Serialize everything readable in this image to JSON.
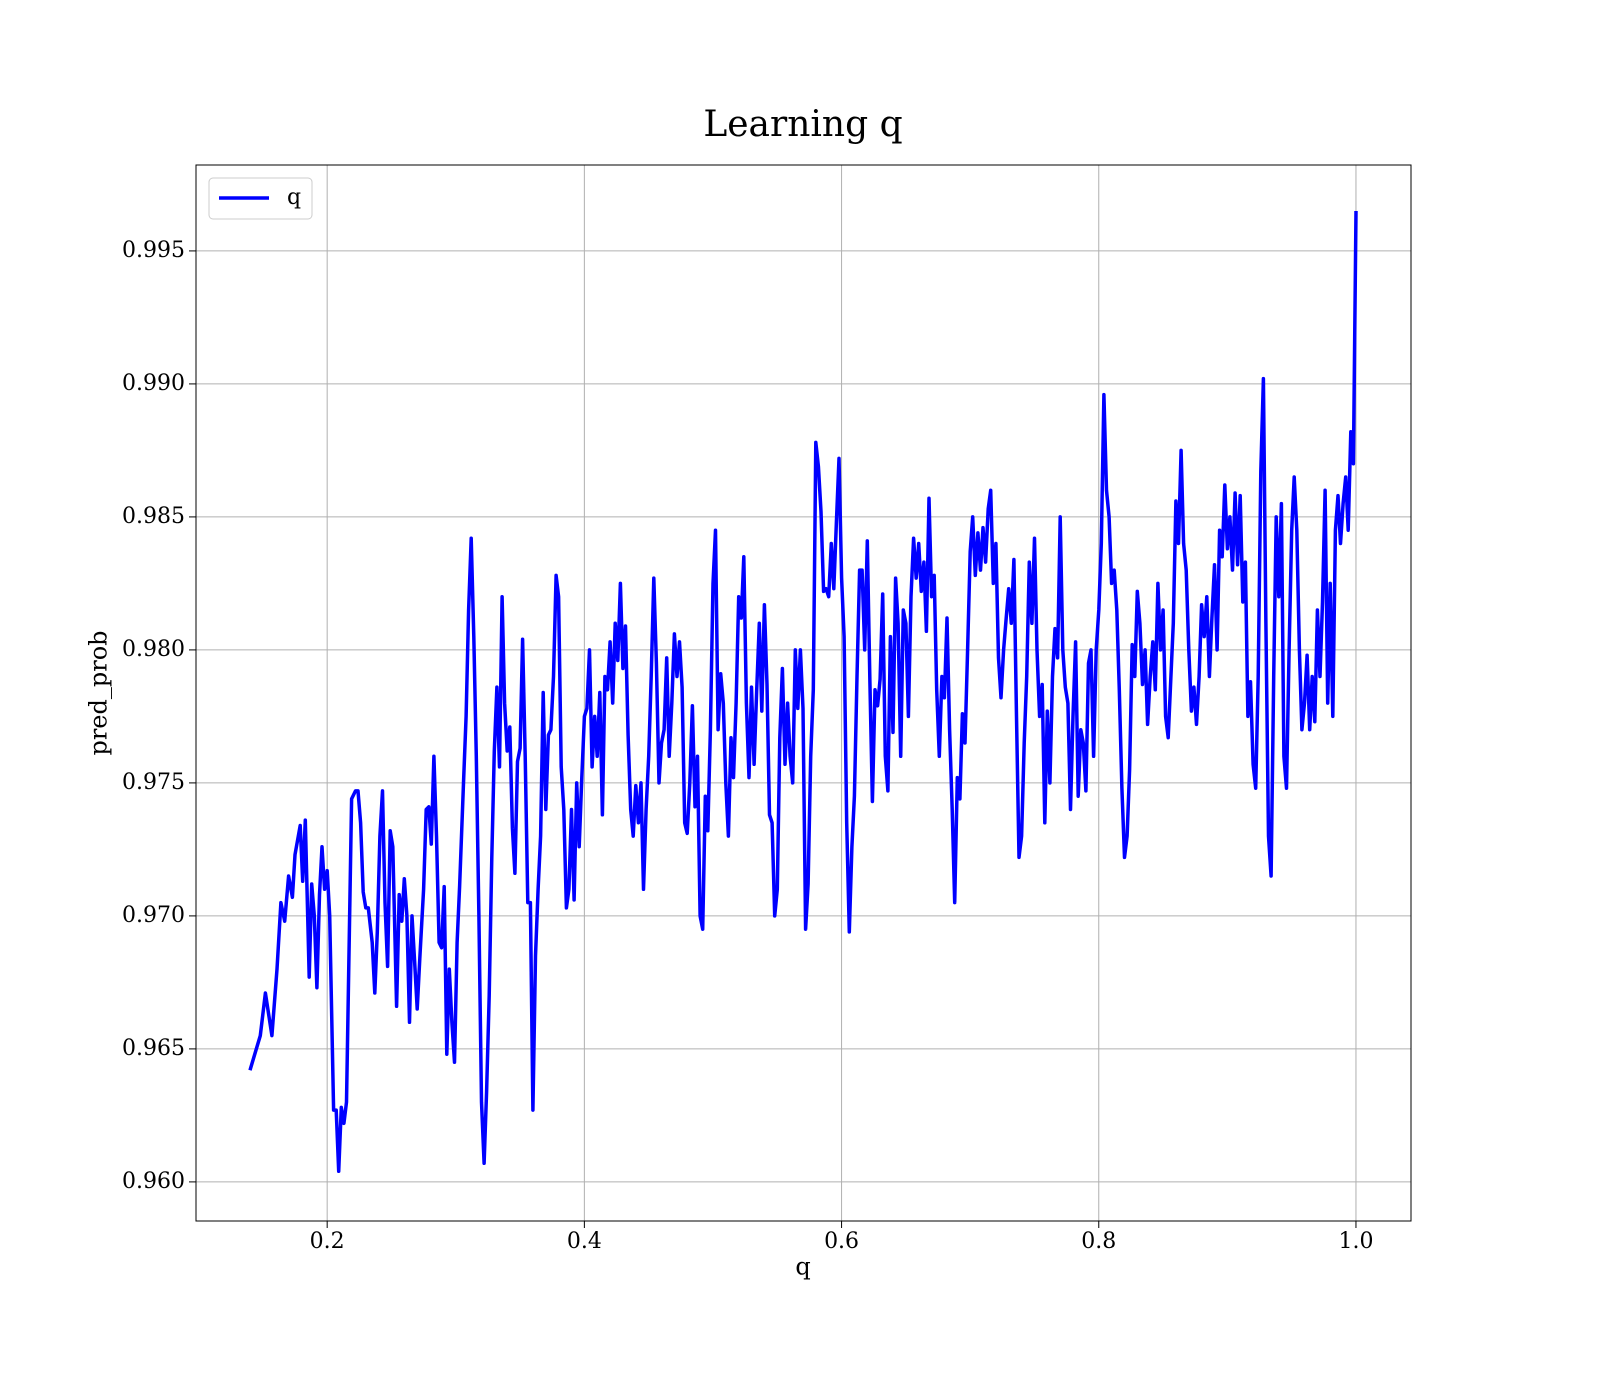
{
  "chart_data": {
    "type": "line",
    "title": "Learning q",
    "xlabel": "q",
    "ylabel": "pred_prob",
    "xlim": [
      0.098,
      1.0428
    ],
    "ylim": [
      0.95853,
      0.99823
    ],
    "xticks": [
      0.2,
      0.4,
      0.6,
      0.8,
      {
        "value": 1.0,
        "label": "1.0"
      }
    ],
    "yticks": [
      {
        "value": 0.96,
        "label": "0.960"
      },
      0.965,
      {
        "value": 0.97,
        "label": "0.970"
      },
      0.975,
      {
        "value": 0.98,
        "label": "0.980"
      },
      0.985,
      {
        "value": 0.99,
        "label": "0.990"
      },
      0.995
    ],
    "grid": true,
    "legend": "upper left",
    "x": [
      0.14,
      0.148,
      0.152,
      0.157,
      0.161,
      0.164,
      0.167,
      0.17,
      0.173,
      0.175,
      0.179,
      0.181,
      0.183,
      0.186,
      0.188,
      0.19,
      0.192,
      0.194,
      0.196,
      0.198,
      0.2,
      0.202,
      0.205,
      0.207,
      0.209,
      0.211,
      0.213,
      0.215,
      0.219,
      0.222,
      0.224,
      0.226,
      0.228,
      0.23,
      0.232,
      0.235,
      0.237,
      0.239,
      0.241,
      0.243,
      0.245,
      0.247,
      0.249,
      0.251,
      0.254,
      0.256,
      0.258,
      0.26,
      0.262,
      0.264,
      0.266,
      0.268,
      0.27,
      0.272,
      0.275,
      0.277,
      0.279,
      0.281,
      0.283,
      0.285,
      0.287,
      0.289,
      0.291,
      0.293,
      0.295,
      0.297,
      0.299,
      0.301,
      0.303,
      0.306,
      0.308,
      0.31,
      0.312,
      0.314,
      0.316,
      0.318,
      0.32,
      0.322,
      0.324,
      0.326,
      0.328,
      0.33,
      0.332,
      0.334,
      0.336,
      0.338,
      0.34,
      0.342,
      0.344,
      0.346,
      0.348,
      0.35,
      0.352,
      0.354,
      0.356,
      0.358,
      0.36,
      0.362,
      0.364,
      0.366,
      0.368,
      0.37,
      0.372,
      0.374,
      0.376,
      0.378,
      0.38,
      0.382,
      0.384,
      0.386,
      0.388,
      0.39,
      0.392,
      0.394,
      0.396,
      0.398,
      0.4,
      0.402,
      0.404,
      0.406,
      0.408,
      0.41,
      0.412,
      0.414,
      0.416,
      0.418,
      0.42,
      0.422,
      0.424,
      0.426,
      0.428,
      0.43,
      0.432,
      0.434,
      0.436,
      0.438,
      0.44,
      0.442,
      0.444,
      0.446,
      0.448,
      0.45,
      0.452,
      0.454,
      0.456,
      0.458,
      0.46,
      0.462,
      0.464,
      0.466,
      0.468,
      0.47,
      0.472,
      0.474,
      0.476,
      0.478,
      0.48,
      0.482,
      0.484,
      0.486,
      0.488,
      0.49,
      0.492,
      0.494,
      0.496,
      0.498,
      0.5,
      0.502,
      0.504,
      0.506,
      0.508,
      0.51,
      0.512,
      0.514,
      0.516,
      0.518,
      0.52,
      0.522,
      0.524,
      0.526,
      0.528,
      0.53,
      0.532,
      0.534,
      0.536,
      0.538,
      0.54,
      0.542,
      0.544,
      0.546,
      0.548,
      0.55,
      0.552,
      0.554,
      0.556,
      0.558,
      0.56,
      0.562,
      0.564,
      0.566,
      0.568,
      0.57,
      0.572,
      0.574,
      0.576,
      0.578,
      0.58,
      0.582,
      0.584,
      0.586,
      0.588,
      0.59,
      0.592,
      0.594,
      0.596,
      0.598,
      0.6,
      0.602,
      0.604,
      0.606,
      0.608,
      0.61,
      0.612,
      0.614,
      0.616,
      0.618,
      0.62,
      0.622,
      0.624,
      0.626,
      0.628,
      0.63,
      0.632,
      0.634,
      0.636,
      0.638,
      0.64,
      0.642,
      0.644,
      0.646,
      0.648,
      0.65,
      0.652,
      0.654,
      0.656,
      0.658,
      0.66,
      0.662,
      0.664,
      0.666,
      0.668,
      0.67,
      0.672,
      0.674,
      0.676,
      0.678,
      0.68,
      0.682,
      0.684,
      0.686,
      0.688,
      0.69,
      0.692,
      0.694,
      0.696,
      0.698,
      0.7,
      0.702,
      0.704,
      0.706,
      0.708,
      0.71,
      0.712,
      0.714,
      0.716,
      0.718,
      0.72,
      0.722,
      0.724,
      0.726,
      0.728,
      0.73,
      0.732,
      0.734,
      0.736,
      0.738,
      0.74,
      0.742,
      0.744,
      0.746,
      0.748,
      0.75,
      0.752,
      0.754,
      0.756,
      0.758,
      0.76,
      0.762,
      0.764,
      0.766,
      0.768,
      0.77,
      0.772,
      0.774,
      0.776,
      0.778,
      0.78,
      0.782,
      0.784,
      0.786,
      0.788,
      0.79,
      0.792,
      0.794,
      0.796,
      0.798,
      0.8,
      0.802,
      0.804,
      0.806,
      0.808,
      0.81,
      0.812,
      0.814,
      0.816,
      0.818,
      0.82,
      0.822,
      0.824,
      0.826,
      0.828,
      0.83,
      0.832,
      0.834,
      0.836,
      0.838,
      0.84,
      0.842,
      0.844,
      0.846,
      0.848,
      0.85,
      0.852,
      0.854,
      0.856,
      0.858,
      0.86,
      0.862,
      0.864,
      0.866,
      0.868,
      0.87,
      0.872,
      0.874,
      0.876,
      0.878,
      0.88,
      0.882,
      0.884,
      0.886,
      0.888,
      0.89,
      0.892,
      0.894,
      0.896,
      0.898,
      0.9,
      0.902,
      0.904,
      0.906,
      0.908,
      0.91,
      0.912,
      0.914,
      0.916,
      0.918,
      0.92,
      0.922,
      0.924,
      0.926,
      0.928,
      0.93,
      0.932,
      0.934,
      0.936,
      0.938,
      0.94,
      0.942,
      0.944,
      0.946,
      0.948,
      0.95,
      0.952,
      0.954,
      0.956,
      0.958,
      0.96,
      0.962,
      0.964,
      0.966,
      0.968,
      0.97,
      0.972,
      0.974,
      0.976,
      0.978,
      0.98,
      0.982,
      0.984,
      0.986,
      0.988,
      0.99,
      0.992,
      0.994,
      0.996,
      0.998,
      1.0
    ],
    "series": [
      {
        "name": "q",
        "color": "#0000ff",
        "values": [
          0.9642,
          0.9655,
          0.9671,
          0.9655,
          0.968,
          0.9705,
          0.9698,
          0.9715,
          0.9707,
          0.9723,
          0.9734,
          0.9713,
          0.9736,
          0.9677,
          0.9712,
          0.97,
          0.9673,
          0.9708,
          0.9726,
          0.971,
          0.9717,
          0.97,
          0.9627,
          0.9627,
          0.9604,
          0.9628,
          0.9622,
          0.963,
          0.9744,
          0.9747,
          0.9747,
          0.9735,
          0.9709,
          0.9703,
          0.9703,
          0.969,
          0.9671,
          0.9694,
          0.973,
          0.9747,
          0.9705,
          0.9681,
          0.9732,
          0.9726,
          0.9666,
          0.9708,
          0.9698,
          0.9714,
          0.97,
          0.966,
          0.97,
          0.9683,
          0.9665,
          0.9684,
          0.971,
          0.974,
          0.9741,
          0.9727,
          0.976,
          0.973,
          0.969,
          0.9688,
          0.9711,
          0.9648,
          0.968,
          0.966,
          0.9645,
          0.969,
          0.9711,
          0.975,
          0.9775,
          0.9815,
          0.9842,
          0.9805,
          0.976,
          0.97,
          0.963,
          0.9607,
          0.9634,
          0.967,
          0.9722,
          0.9762,
          0.9786,
          0.9756,
          0.982,
          0.978,
          0.9762,
          0.9771,
          0.9733,
          0.9716,
          0.9758,
          0.9763,
          0.9804,
          0.976,
          0.9705,
          0.9705,
          0.9627,
          0.9685,
          0.971,
          0.973,
          0.9784,
          0.974,
          0.9768,
          0.977,
          0.979,
          0.9828,
          0.982,
          0.9756,
          0.974,
          0.9703,
          0.971,
          0.974,
          0.9706,
          0.975,
          0.9726,
          0.9752,
          0.9775,
          0.9778,
          0.98,
          0.9756,
          0.9775,
          0.976,
          0.9784,
          0.9738,
          0.979,
          0.9785,
          0.9803,
          0.978,
          0.981,
          0.9796,
          0.9825,
          0.9793,
          0.9809,
          0.9768,
          0.974,
          0.973,
          0.9749,
          0.9735,
          0.975,
          0.971,
          0.974,
          0.976,
          0.979,
          0.9827,
          0.9795,
          0.975,
          0.9765,
          0.977,
          0.9797,
          0.976,
          0.978,
          0.9806,
          0.979,
          0.9803,
          0.9786,
          0.9735,
          0.9731,
          0.975,
          0.9779,
          0.9741,
          0.976,
          0.97,
          0.9695,
          0.9745,
          0.9732,
          0.977,
          0.9825,
          0.9845,
          0.977,
          0.9791,
          0.978,
          0.975,
          0.973,
          0.9767,
          0.9752,
          0.978,
          0.982,
          0.9812,
          0.9835,
          0.978,
          0.9752,
          0.9786,
          0.9757,
          0.9785,
          0.981,
          0.9777,
          0.9817,
          0.9787,
          0.9738,
          0.9735,
          0.97,
          0.971,
          0.9767,
          0.9793,
          0.9757,
          0.978,
          0.976,
          0.975,
          0.98,
          0.9778,
          0.98,
          0.9778,
          0.9695,
          0.9712,
          0.976,
          0.9785,
          0.9878,
          0.9869,
          0.9852,
          0.9822,
          0.9823,
          0.982,
          0.984,
          0.9823,
          0.9848,
          0.9872,
          0.9827,
          0.9805,
          0.9735,
          0.9694,
          0.9726,
          0.9745,
          0.979,
          0.983,
          0.983,
          0.98,
          0.9841,
          0.9788,
          0.9743,
          0.9785,
          0.9779,
          0.9789,
          0.9821,
          0.976,
          0.9747,
          0.9805,
          0.9769,
          0.9827,
          0.981,
          0.976,
          0.9815,
          0.981,
          0.9775,
          0.982,
          0.9842,
          0.9827,
          0.984,
          0.9822,
          0.9833,
          0.9807,
          0.9857,
          0.982,
          0.9828,
          0.9785,
          0.976,
          0.979,
          0.9782,
          0.9812,
          0.977,
          0.974,
          0.9705,
          0.9752,
          0.9744,
          0.9776,
          0.9765,
          0.98,
          0.9837,
          0.985,
          0.9828,
          0.9844,
          0.983,
          0.9846,
          0.9833,
          0.9853,
          0.986,
          0.9825,
          0.984,
          0.9797,
          0.9782,
          0.98,
          0.9812,
          0.9823,
          0.981,
          0.9834,
          0.9775,
          0.9722,
          0.973,
          0.9765,
          0.979,
          0.9833,
          0.981,
          0.9842,
          0.98,
          0.9775,
          0.9787,
          0.9735,
          0.9777,
          0.975,
          0.979,
          0.9808,
          0.9797,
          0.985,
          0.98,
          0.9786,
          0.978,
          0.974,
          0.9775,
          0.9803,
          0.9745,
          0.977,
          0.9765,
          0.9747,
          0.9795,
          0.98,
          0.976,
          0.98,
          0.9815,
          0.984,
          0.9896,
          0.986,
          0.985,
          0.9825,
          0.983,
          0.9815,
          0.9785,
          0.9748,
          0.9722,
          0.973,
          0.9755,
          0.9802,
          0.979,
          0.9822,
          0.981,
          0.9787,
          0.98,
          0.9772,
          0.979,
          0.9803,
          0.9785,
          0.9825,
          0.98,
          0.9815,
          0.9775,
          0.9767,
          0.9789,
          0.981,
          0.9856,
          0.984,
          0.9875,
          0.984,
          0.983,
          0.98,
          0.9777,
          0.9786,
          0.9772,
          0.979,
          0.9817,
          0.9805,
          0.982,
          0.979,
          0.9812,
          0.9832,
          0.98,
          0.9845,
          0.9835,
          0.9862,
          0.9838,
          0.985,
          0.983,
          0.9859,
          0.9832,
          0.9858,
          0.9818,
          0.9833,
          0.9775,
          0.9788,
          0.9757,
          0.9748,
          0.979,
          0.9867,
          0.9902,
          0.981,
          0.973,
          0.9715,
          0.979,
          0.985,
          0.982,
          0.9855,
          0.976,
          0.9748,
          0.98,
          0.9845,
          0.9865,
          0.9845,
          0.98,
          0.977,
          0.978,
          0.9798,
          0.977,
          0.979,
          0.9773,
          0.9815,
          0.979,
          0.9818,
          0.986,
          0.978,
          0.9825,
          0.9775,
          0.9845,
          0.9858,
          0.984,
          0.9855,
          0.9865,
          0.9845,
          0.9882,
          0.987,
          0.9965
        ]
      }
    ]
  }
}
